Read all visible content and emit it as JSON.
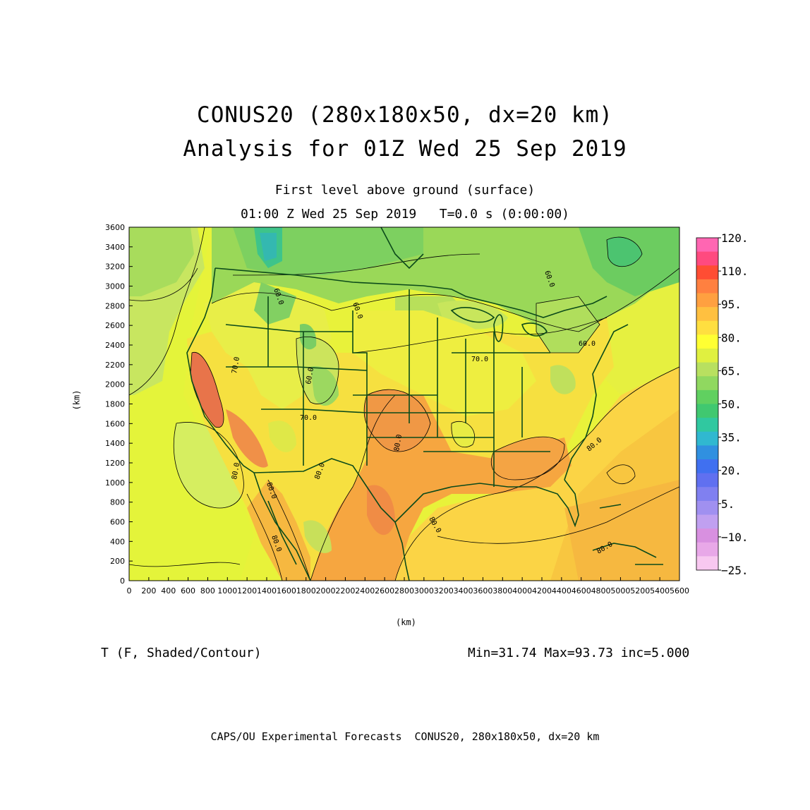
{
  "title": {
    "line1": "CONUS20 (280x180x50, dx=20 km)",
    "line2": "Analysis for 01Z Wed 25 Sep 2019",
    "subtitle1": "First level above ground (surface)",
    "subtitle2": "01:00 Z Wed 25 Sep 2019   T=0.0 s (0:00:00)"
  },
  "axes": {
    "x_label": "(km)",
    "y_label": "(km)",
    "x_ticks": [
      "0",
      "200",
      "400",
      "600",
      "800",
      "1000",
      "1200",
      "1400",
      "1600",
      "1800",
      "2000",
      "2200",
      "2400",
      "2600",
      "2800",
      "3000",
      "3200",
      "3400",
      "3600",
      "3800",
      "4000",
      "4200",
      "4400",
      "4600",
      "4800",
      "5000",
      "5200",
      "5400",
      "5600"
    ],
    "y_ticks": [
      "0",
      "200",
      "400",
      "600",
      "800",
      "1000",
      "1200",
      "1400",
      "1600",
      "1800",
      "2000",
      "2200",
      "2400",
      "2600",
      "2800",
      "3000",
      "3200",
      "3400",
      "3600"
    ],
    "x_range": [
      0,
      5600
    ],
    "y_range": [
      0,
      3600
    ]
  },
  "colorbar": {
    "labels": [
      "120.",
      "110.",
      "95.",
      "80.",
      "65.",
      "50.",
      "35.",
      "20.",
      "5.",
      "−10.",
      "−25."
    ],
    "colors": [
      "#ff66b2",
      "#ff4a7f",
      "#ff4d33",
      "#ff8040",
      "#ffa040",
      "#ffc040",
      "#ffdf40",
      "#ffff33",
      "#e0f040",
      "#b8e060",
      "#90d860",
      "#60d060",
      "#40c870",
      "#30c8a0",
      "#30b8d0",
      "#3090e0",
      "#4070f0",
      "#6070f0",
      "#8080f0",
      "#a090f0",
      "#c0a0f0",
      "#d890e0",
      "#e8a8e8",
      "#f8c8f0"
    ]
  },
  "contour_labels": [
    "60.0",
    "60.0",
    "60.0",
    "60.0",
    "70.0",
    "70.0",
    "70.0",
    "80.0",
    "80.0",
    "80.0",
    "80.0",
    "80.0",
    "80.0",
    "80.0",
    "80.0",
    "60.0"
  ],
  "variable_label": "T (F, Shaded/Contour)",
  "stats": "Min=31.74 Max=93.73 inc=5.000",
  "footer": "CAPS/OU Experimental Forecasts  CONUS20, 280x180x50, dx=20 km"
}
